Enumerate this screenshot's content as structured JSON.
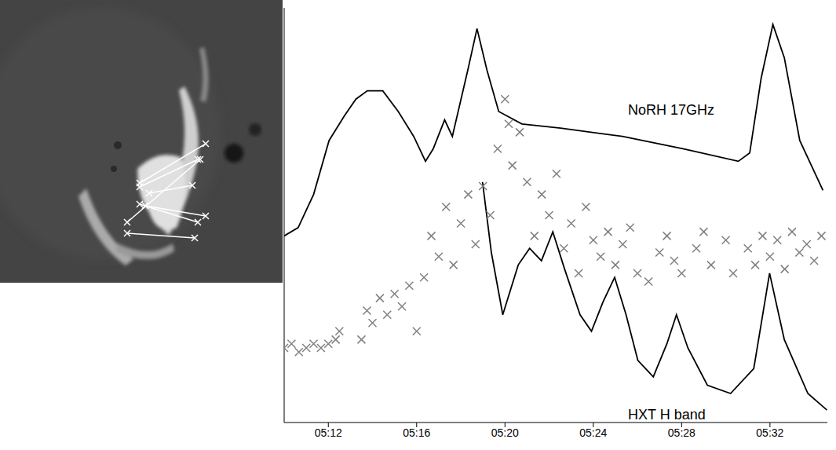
{
  "chart_data": {
    "type": "line",
    "xlim": [
      "05:10:00",
      "05:34:36"
    ],
    "xticks": [
      "05:12",
      "05:16",
      "05:20",
      "05:24",
      "05:28",
      "05:32"
    ],
    "ylim": [
      0,
      100
    ],
    "yticks": [],
    "tick_labels": "x",
    "series": [
      {
        "color": "#808080",
        "type": "scatter",
        "marker": "x",
        "x": [
          "05:10:00",
          "05:10:20",
          "05:10:40",
          "05:11:00",
          "05:11:20",
          "05:11:40",
          "05:12:00",
          "05:12:20",
          "05:12:30",
          "05:13:30",
          "05:13:45",
          "05:14:00",
          "05:14:20",
          "05:14:40",
          "05:15:00",
          "05:15:20",
          "05:15:40",
          "05:16:00",
          "05:16:20",
          "05:16:40",
          "05:17:00",
          "05:17:20",
          "05:17:40",
          "05:18:00",
          "05:18:20",
          "05:18:40",
          "05:19:00",
          "05:19:20",
          "05:19:40",
          "05:20:00",
          "05:20:10",
          "05:20:20",
          "05:20:40",
          "05:21:00",
          "05:21:20",
          "05:21:40",
          "05:22:00",
          "05:22:20",
          "05:22:40",
          "05:23:00",
          "05:23:20",
          "05:23:40",
          "05:24:00",
          "05:24:20",
          "05:24:40",
          "05:25:00",
          "05:25:20",
          "05:25:40",
          "05:26:00",
          "05:26:30",
          "05:27:00",
          "05:27:20",
          "05:27:40",
          "05:28:00",
          "05:28:40",
          "05:29:00",
          "05:29:20",
          "05:30:00",
          "05:30:20",
          "05:31:00",
          "05:31:20",
          "05:31:40",
          "05:32:00",
          "05:32:20",
          "05:32:40",
          "05:33:00",
          "05:33:20",
          "05:33:40",
          "05:34:00",
          "05:34:20"
        ],
        "values": [
          18,
          19,
          17,
          18,
          19,
          18,
          19,
          20,
          22,
          20,
          27,
          24,
          30,
          26,
          31,
          28,
          33,
          22,
          35,
          45,
          40,
          52,
          38,
          48,
          55,
          43,
          57,
          50,
          66,
          78,
          72,
          62,
          70,
          58,
          45,
          55,
          50,
          60,
          42,
          48,
          36,
          52,
          44,
          40,
          46,
          38,
          43,
          47,
          36,
          34,
          41,
          45,
          39,
          36,
          42,
          46,
          38,
          44,
          36,
          42,
          38,
          45,
          40,
          44,
          37,
          46,
          41,
          43,
          39,
          45
        ]
      },
      {
        "name": "NoRH 17GHz",
        "color": "#000000",
        "type": "line",
        "marker": "none",
        "x": [
          "05:10:00",
          "05:10:38",
          "05:11:20",
          "05:12:02",
          "05:12:44",
          "05:13:15",
          "05:13:46",
          "05:14:28",
          "05:15:10",
          "05:15:52",
          "05:16:24",
          "05:16:45",
          "05:17:16",
          "05:17:37",
          "05:18:19",
          "05:18:44",
          "05:19:11",
          "05:19:43",
          "05:20:46",
          "05:22:31",
          "05:25:19",
          "05:28:06",
          "05:30:34",
          "05:31:05",
          "05:31:36",
          "05:32:08",
          "05:32:39",
          "05:33:21",
          "05:34:24"
        ],
        "values": [
          45,
          47,
          55,
          68,
          74,
          78,
          80,
          80,
          75,
          69,
          63,
          66,
          73,
          69,
          85,
          95,
          85,
          75,
          72,
          71,
          69,
          66,
          63,
          65,
          83,
          96,
          88,
          68,
          56
        ]
      },
      {
        "name": "HXT H band",
        "color": "#000000",
        "type": "line",
        "marker": "none",
        "x": [
          "05:18:59",
          "05:19:23",
          "05:19:54",
          "05:20:36",
          "05:21:07",
          "05:21:39",
          "05:22:10",
          "05:22:42",
          "05:23:24",
          "05:23:55",
          "05:24:26",
          "05:24:58",
          "05:25:29",
          "05:26:01",
          "05:26:43",
          "05:27:20",
          "05:27:46",
          "05:28:17",
          "05:29:10",
          "05:30:13",
          "05:31:16",
          "05:31:59",
          "05:32:39",
          "05:33:43",
          "05:34:35"
        ],
        "values": [
          58,
          41,
          26,
          38,
          42,
          39,
          46,
          37,
          26,
          22,
          29,
          35,
          26,
          15,
          11,
          19,
          26,
          18,
          9,
          7,
          13,
          36,
          20,
          7,
          3
        ]
      }
    ]
  }
}
